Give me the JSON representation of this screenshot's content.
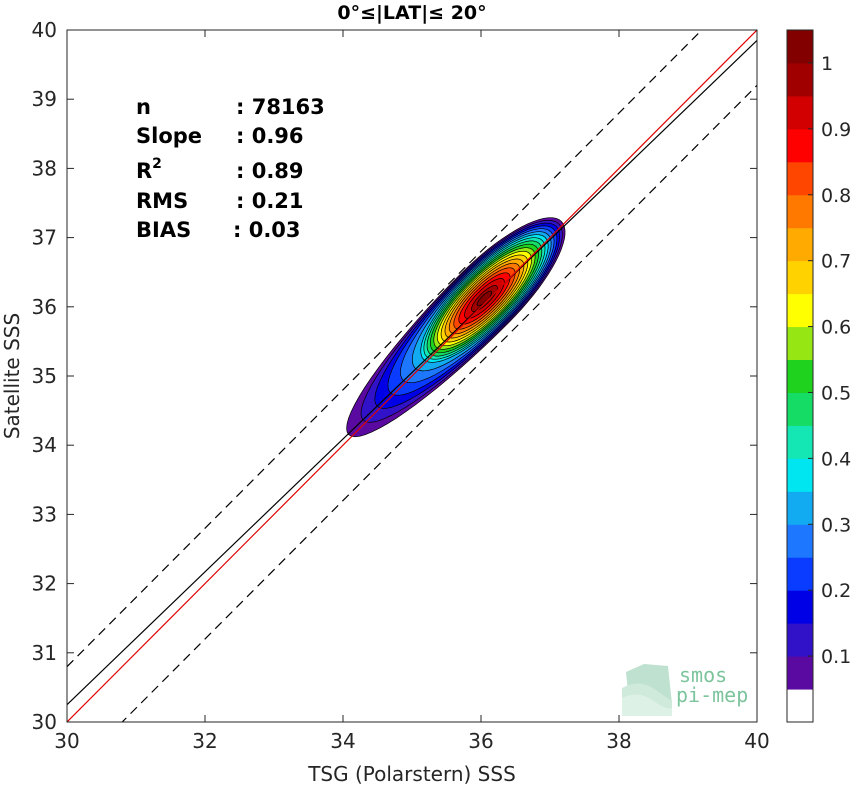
{
  "chart_data": {
    "type": "scatter",
    "title": "0°≤|LAT|≤ 20°",
    "xlabel": "TSG (Polarstern) SSS",
    "ylabel": "Satellite SSS",
    "xlim": [
      30,
      40
    ],
    "ylim": [
      30,
      40
    ],
    "xticks": [
      "30",
      "32",
      "34",
      "36",
      "38",
      "40"
    ],
    "yticks": [
      "30",
      "31",
      "32",
      "33",
      "34",
      "35",
      "36",
      "37",
      "38",
      "39",
      "40"
    ],
    "grid": false,
    "stats": [
      {
        "label": "n",
        "value": ": 78163"
      },
      {
        "label": "Slope",
        "value": ": 0.96"
      },
      {
        "label": "R",
        "sup": "2",
        "value": ": 0.89"
      },
      {
        "label": "RMS",
        "value": ": 0.21"
      },
      {
        "label": "BIAS",
        "value": ": 0.03"
      }
    ],
    "lines": {
      "identity": {
        "color": "#e00000",
        "x": [
          30,
          40
        ],
        "y": [
          30,
          40
        ]
      },
      "fit": {
        "color": "#000000",
        "x": [
          30,
          40
        ],
        "y": [
          30.25,
          39.85
        ]
      },
      "upper_bound": {
        "color": "#000000",
        "dash": true,
        "x": [
          30,
          40
        ],
        "y": [
          30.8,
          40.8
        ]
      },
      "lower_bound": {
        "color": "#000000",
        "dash": true,
        "x": [
          30,
          40
        ],
        "y": [
          29.2,
          39.2
        ]
      }
    },
    "density_center": {
      "x": 36.05,
      "y": 36.12
    },
    "colorbar": {
      "ticks": [
        "0.1",
        "0.2",
        "0.3",
        "0.4",
        "0.5",
        "0.6",
        "0.7",
        "0.8",
        "0.9",
        "1"
      ],
      "range": [
        0,
        1
      ],
      "colors": [
        "#ffffff",
        "#5a0aa0",
        "#3212c8",
        "#0000e6",
        "#0a3cff",
        "#1e78ff",
        "#12aaf0",
        "#00e6f0",
        "#14e6b4",
        "#14dc64",
        "#1ed21e",
        "#96e614",
        "#ffff00",
        "#ffd200",
        "#ffaa00",
        "#ff7800",
        "#ff4600",
        "#ff0000",
        "#d20000",
        "#a00000",
        "#820000"
      ]
    },
    "watermark": [
      "smos",
      "pi-mep"
    ]
  }
}
